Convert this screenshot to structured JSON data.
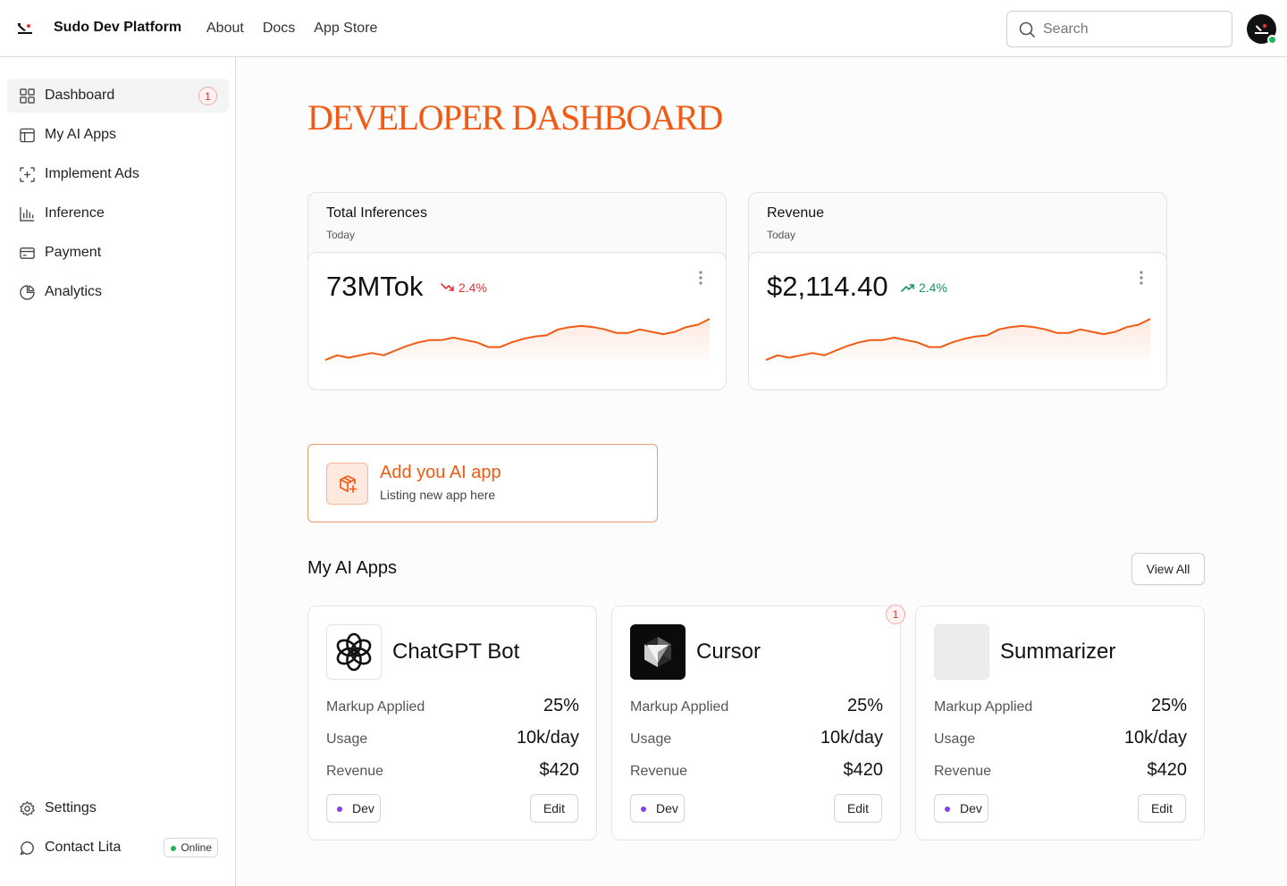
{
  "header": {
    "brand": "Sudo Dev Platform",
    "nav": [
      "About",
      "Docs",
      "App Store"
    ],
    "search_placeholder": "Search"
  },
  "sidebar": {
    "items": [
      {
        "label": "Dashboard",
        "icon": "grid-icon",
        "badge": "1",
        "active": true
      },
      {
        "label": "My AI Apps",
        "icon": "layout-icon"
      },
      {
        "label": "Implement Ads",
        "icon": "focus-plus-icon"
      },
      {
        "label": "Inference",
        "icon": "bar-chart-icon"
      },
      {
        "label": "Payment",
        "icon": "credit-card-icon"
      },
      {
        "label": "Analytics",
        "icon": "pie-chart-icon"
      }
    ],
    "bottom": [
      {
        "label": "Settings",
        "icon": "gear-icon"
      },
      {
        "label": "Contact Lita",
        "icon": "chat-icon",
        "status": "Online"
      }
    ]
  },
  "main": {
    "title": "DEVELOPER DASHBOARD",
    "stats": [
      {
        "label": "Total Inferences",
        "sub": "Today",
        "value": "73MTok",
        "delta": "2.4%",
        "trend": "down"
      },
      {
        "label": "Revenue",
        "sub": "Today",
        "value": "$2,114.40",
        "delta": "2.4%",
        "trend": "up"
      }
    ],
    "add_app": {
      "title": "Add you AI app",
      "subtitle": "Listing new app here"
    },
    "apps_section": {
      "title": "My AI Apps",
      "view_all": "View All"
    },
    "apps": [
      {
        "name": "ChatGPT Bot",
        "markup_label": "Markup Applied",
        "markup": "25%",
        "usage_label": "Usage",
        "usage": "10k/day",
        "revenue_label": "Revenue",
        "revenue": "$420",
        "env": "Dev",
        "edit": "Edit"
      },
      {
        "name": "Cursor",
        "badge": "1",
        "markup_label": "Markup Applied",
        "markup": "25%",
        "usage_label": "Usage",
        "usage": "10k/day",
        "revenue_label": "Revenue",
        "revenue": "$420",
        "env": "Dev",
        "edit": "Edit"
      },
      {
        "name": "Summarizer",
        "markup_label": "Markup Applied",
        "markup": "25%",
        "usage_label": "Usage",
        "usage": "10k/day",
        "revenue_label": "Revenue",
        "revenue": "$420",
        "env": "Dev",
        "edit": "Edit"
      }
    ]
  },
  "colors": {
    "accent": "#f05a12",
    "up": "#17985a",
    "down": "#dd3333",
    "online": "#1fb55a",
    "dev_dot": "#8b3ee8"
  },
  "sparkline": [
    26,
    30,
    28,
    30,
    32,
    30,
    34,
    38,
    41,
    43,
    43,
    45,
    43,
    41,
    37,
    37,
    41,
    44,
    46,
    47,
    52,
    54,
    55,
    54,
    52,
    49,
    49,
    52,
    50,
    48,
    50,
    54,
    56,
    61
  ]
}
